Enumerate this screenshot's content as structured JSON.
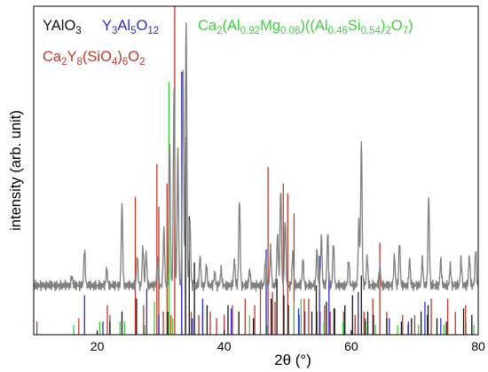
{
  "chart_data": {
    "type": "line",
    "xlabel": "2θ (°)",
    "ylabel": "intensity (arb. unit)",
    "xlim": [
      10,
      80
    ],
    "ylim": [
      0,
      100
    ],
    "x_ticks": [
      20,
      40,
      60,
      80
    ],
    "grid": false,
    "legend_position": "top",
    "legend": [
      {
        "id": "yalo3",
        "parts": [
          [
            "YAlO",
            ""
          ],
          [
            "3",
            "sub"
          ]
        ],
        "color": "#111111"
      },
      {
        "id": "yag",
        "parts": [
          [
            "Y",
            ""
          ],
          [
            "3",
            "sub"
          ],
          [
            "Al",
            ""
          ],
          [
            "5",
            "sub"
          ],
          [
            "O",
            ""
          ],
          [
            "12",
            "sub"
          ]
        ],
        "color": "#2a2acc"
      },
      {
        "id": "gehlenite",
        "parts": [
          [
            "Ca",
            ""
          ],
          [
            "2",
            "sub"
          ],
          [
            "(Al",
            ""
          ],
          [
            "0.92",
            "sub"
          ],
          [
            "Mg",
            ""
          ],
          [
            "0.08",
            "sub"
          ],
          [
            ")((Al",
            ""
          ],
          [
            "0.46",
            "sub"
          ],
          [
            "Si",
            ""
          ],
          [
            "0.54",
            "sub"
          ],
          [
            ")",
            ""
          ],
          [
            "2",
            "sub"
          ],
          [
            "O",
            ""
          ],
          [
            "7",
            "sub"
          ],
          [
            ")",
            ""
          ]
        ],
        "color": "#3bd13b"
      },
      {
        "id": "apatite",
        "parts": [
          [
            "Ca",
            ""
          ],
          [
            "2",
            "sub"
          ],
          [
            "Y",
            ""
          ],
          [
            "8",
            "sub"
          ],
          [
            "(SiO",
            ""
          ],
          [
            "4",
            "sub"
          ],
          [
            ")",
            ""
          ],
          [
            "6",
            "sub"
          ],
          [
            "O",
            ""
          ],
          [
            "2",
            "sub"
          ]
        ],
        "color": "#c0392b"
      }
    ],
    "measured": {
      "color": "#808080",
      "baseline": 15,
      "peaks": [
        [
          16.0,
          3
        ],
        [
          18.0,
          11
        ],
        [
          21.5,
          5
        ],
        [
          23.9,
          25
        ],
        [
          26.3,
          9
        ],
        [
          27.2,
          12
        ],
        [
          27.7,
          10
        ],
        [
          29.5,
          8
        ],
        [
          30.5,
          17
        ],
        [
          31.4,
          43
        ],
        [
          32.1,
          60
        ],
        [
          32.7,
          41
        ],
        [
          33.5,
          66
        ],
        [
          34.0,
          80
        ],
        [
          34.6,
          20
        ],
        [
          36.2,
          9
        ],
        [
          37.2,
          6
        ],
        [
          38.5,
          4
        ],
        [
          39.5,
          5
        ],
        [
          41.6,
          8
        ],
        [
          42.4,
          26
        ],
        [
          44.0,
          5
        ],
        [
          46.5,
          8
        ],
        [
          47.3,
          11
        ],
        [
          48.4,
          16
        ],
        [
          48.9,
          30
        ],
        [
          49.6,
          20
        ],
        [
          50.8,
          10
        ],
        [
          52.4,
          8
        ],
        [
          54.6,
          11
        ],
        [
          55.3,
          15
        ],
        [
          56.3,
          16
        ],
        [
          57.2,
          13
        ],
        [
          59.6,
          8
        ],
        [
          61.2,
          19
        ],
        [
          61.6,
          44
        ],
        [
          62.5,
          9
        ],
        [
          64.5,
          6
        ],
        [
          66.8,
          9
        ],
        [
          67.6,
          13
        ],
        [
          69.2,
          8
        ],
        [
          71.2,
          8
        ],
        [
          72.2,
          27
        ],
        [
          74.1,
          8
        ],
        [
          75.6,
          6
        ],
        [
          77.3,
          8
        ],
        [
          78.6,
          9
        ],
        [
          79.6,
          11
        ]
      ]
    },
    "reference_series": [
      {
        "name_ref": "apatite",
        "color": "#c0392b",
        "sticks": [
          [
            10.5,
            4
          ],
          [
            17.1,
            5
          ],
          [
            21.6,
            9
          ],
          [
            22.0,
            6
          ],
          [
            26.0,
            42
          ],
          [
            27.3,
            9
          ],
          [
            29.4,
            52
          ],
          [
            29.7,
            39
          ],
          [
            30.4,
            7
          ],
          [
            31.0,
            46
          ],
          [
            31.6,
            6
          ],
          [
            32.2,
            100
          ],
          [
            33.3,
            15
          ],
          [
            33.9,
            18
          ],
          [
            34.8,
            7
          ],
          [
            36.0,
            6
          ],
          [
            37.8,
            7
          ],
          [
            38.8,
            5
          ],
          [
            40.0,
            6
          ],
          [
            41.3,
            9
          ],
          [
            43.3,
            11
          ],
          [
            44.8,
            9
          ],
          [
            45.7,
            15
          ],
          [
            46.9,
            51
          ],
          [
            47.6,
            13
          ],
          [
            48.0,
            10
          ],
          [
            49.3,
            46
          ],
          [
            50.0,
            43
          ],
          [
            51.0,
            37
          ],
          [
            51.8,
            6
          ],
          [
            52.6,
            11
          ],
          [
            53.3,
            11
          ],
          [
            54.6,
            7
          ],
          [
            55.1,
            7
          ],
          [
            55.8,
            9
          ],
          [
            56.7,
            7
          ],
          [
            58.8,
            7
          ],
          [
            60.6,
            6
          ],
          [
            62.0,
            7
          ],
          [
            63.4,
            11
          ],
          [
            64.5,
            28
          ],
          [
            65.6,
            7
          ],
          [
            68.1,
            6
          ],
          [
            70.0,
            6
          ],
          [
            72.6,
            11
          ],
          [
            75.2,
            11
          ],
          [
            76.4,
            7
          ],
          [
            78.0,
            9
          ]
        ]
      },
      {
        "name_ref": "gehlenite",
        "color": "#3bd13b",
        "sticks": [
          [
            16.3,
            3
          ],
          [
            20.4,
            4
          ],
          [
            23.6,
            4
          ],
          [
            24.3,
            4
          ],
          [
            27.5,
            3
          ],
          [
            29.0,
            10
          ],
          [
            31.3,
            77
          ],
          [
            31.9,
            5
          ],
          [
            36.6,
            7
          ],
          [
            44.0,
            6
          ],
          [
            46.7,
            3
          ],
          [
            51.0,
            10
          ],
          [
            52.1,
            11
          ],
          [
            55.7,
            4
          ],
          [
            57.3,
            3
          ],
          [
            58.7,
            4
          ],
          [
            62.3,
            4
          ],
          [
            63.8,
            3
          ],
          [
            67.3,
            3
          ],
          [
            68.9,
            3
          ],
          [
            70.6,
            3
          ],
          [
            72.0,
            4
          ],
          [
            74.6,
            3
          ],
          [
            78.1,
            4
          ],
          [
            79.3,
            3
          ]
        ]
      },
      {
        "name_ref": "yag",
        "color": "#2a2acc",
        "sticks": [
          [
            18.0,
            12
          ],
          [
            20.9,
            4
          ],
          [
            27.8,
            14
          ],
          [
            29.7,
            6
          ],
          [
            33.3,
            80
          ],
          [
            35.0,
            5
          ],
          [
            36.6,
            11
          ],
          [
            41.1,
            8
          ],
          [
            46.6,
            26
          ],
          [
            51.7,
            8
          ],
          [
            52.7,
            7
          ],
          [
            55.0,
            24
          ],
          [
            56.5,
            19
          ],
          [
            57.4,
            8
          ],
          [
            61.1,
            13
          ],
          [
            62.2,
            5
          ],
          [
            66.0,
            5
          ],
          [
            69.0,
            4
          ],
          [
            71.6,
            10
          ],
          [
            72.0,
            6
          ],
          [
            74.1,
            5
          ]
        ]
      },
      {
        "name_ref": "yalo3",
        "color": "#111111",
        "sticks": [
          [
            22.0,
            4
          ],
          [
            23.9,
            7
          ],
          [
            26.2,
            11
          ],
          [
            31.1,
            7
          ],
          [
            33.9,
            60
          ],
          [
            34.5,
            36
          ],
          [
            35.3,
            22
          ],
          [
            37.3,
            9
          ],
          [
            40.6,
            9
          ],
          [
            42.3,
            7
          ],
          [
            44.6,
            5
          ],
          [
            47.4,
            11
          ],
          [
            48.3,
            17
          ],
          [
            49.4,
            12
          ],
          [
            50.1,
            9
          ],
          [
            53.8,
            7
          ],
          [
            54.5,
            15
          ],
          [
            56.1,
            10
          ],
          [
            57.3,
            8
          ],
          [
            59.0,
            9
          ],
          [
            60.2,
            12
          ],
          [
            61.6,
            18
          ],
          [
            62.6,
            7
          ],
          [
            63.5,
            6
          ],
          [
            65.6,
            5
          ],
          [
            67.9,
            4
          ],
          [
            69.5,
            5
          ],
          [
            71.0,
            7
          ],
          [
            72.1,
            9
          ],
          [
            73.5,
            5
          ],
          [
            75.0,
            4
          ],
          [
            77.7,
            8
          ],
          [
            79.0,
            6
          ]
        ]
      }
    ]
  }
}
